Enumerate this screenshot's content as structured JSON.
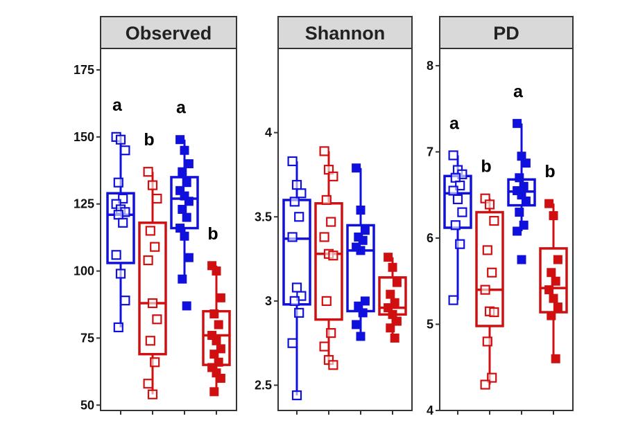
{
  "chart_data": [
    {
      "type": "boxplot",
      "title": "Observed",
      "ylim": [
        48,
        183
      ],
      "yticks": [
        50,
        75,
        100,
        125,
        150,
        175
      ],
      "groups": [
        {
          "color": "#1010dd",
          "filled": false,
          "q1": 103,
          "median": 121,
          "q3": 129,
          "whisker_low": 79,
          "whisker_high": 150,
          "points": [
            150,
            149,
            145,
            133,
            127,
            125,
            123,
            122,
            121,
            118,
            106,
            99,
            89,
            79
          ],
          "sig": "a"
        },
        {
          "color": "#d01010",
          "filled": false,
          "q1": 69,
          "median": 88,
          "q3": 118,
          "whisker_low": 54,
          "whisker_high": 137,
          "points": [
            137,
            132,
            127,
            115,
            109,
            104,
            88,
            82,
            74,
            66,
            58,
            54
          ],
          "sig": "b"
        },
        {
          "color": "#1010dd",
          "filled": true,
          "q1": 116,
          "median": 127,
          "q3": 135,
          "whisker_low": 97,
          "whisker_high": 149,
          "points": [
            149,
            145,
            140,
            137,
            133,
            130,
            128,
            126,
            123,
            120,
            116,
            113,
            105,
            97,
            87
          ],
          "sig": "a"
        },
        {
          "color": "#d01010",
          "filled": true,
          "q1": 65,
          "median": 76,
          "q3": 85,
          "whisker_low": 55,
          "whisker_high": 102,
          "points": [
            102,
            100,
            90,
            84,
            80,
            76,
            74,
            71,
            69,
            66,
            64,
            62,
            60,
            55
          ],
          "sig": "b"
        }
      ]
    },
    {
      "type": "boxplot",
      "title": "Shannon",
      "ylim": [
        2.35,
        4.5
      ],
      "yticks": [
        2.5,
        3.0,
        3.5,
        4.0
      ],
      "groups": [
        {
          "color": "#1010dd",
          "filled": false,
          "q1": 2.98,
          "median": 3.37,
          "q3": 3.6,
          "whisker_low": 2.44,
          "whisker_high": 3.83,
          "points": [
            3.83,
            3.69,
            3.64,
            3.59,
            3.5,
            3.38,
            3.08,
            3.03,
            3.0,
            2.93,
            2.75,
            2.44
          ],
          "sig": ""
        },
        {
          "color": "#d01010",
          "filled": false,
          "q1": 2.89,
          "median": 3.28,
          "q3": 3.58,
          "whisker_low": 2.62,
          "whisker_high": 3.89,
          "points": [
            3.89,
            3.78,
            3.74,
            3.6,
            3.47,
            3.38,
            3.28,
            3.27,
            3.0,
            2.81,
            2.73,
            2.65,
            2.62
          ],
          "sig": ""
        },
        {
          "color": "#1010dd",
          "filled": true,
          "q1": 2.94,
          "median": 3.3,
          "q3": 3.45,
          "whisker_low": 2.79,
          "whisker_high": 3.79,
          "points": [
            3.79,
            3.54,
            3.42,
            3.38,
            3.36,
            3.32,
            3.3,
            3.0,
            2.97,
            2.93,
            2.86,
            2.79
          ],
          "sig": ""
        },
        {
          "color": "#d01010",
          "filled": true,
          "q1": 2.92,
          "median": 2.96,
          "q3": 3.14,
          "whisker_low": 2.78,
          "whisker_high": 3.26,
          "points": [
            3.26,
            3.2,
            3.11,
            3.04,
            2.99,
            2.96,
            2.92,
            2.88,
            2.84,
            2.78
          ],
          "sig": ""
        }
      ]
    },
    {
      "type": "boxplot",
      "title": "PD",
      "ylim": [
        4.0,
        8.2
      ],
      "yticks": [
        4,
        5,
        6,
        7,
        8
      ],
      "groups": [
        {
          "color": "#1010dd",
          "filled": false,
          "q1": 6.12,
          "median": 6.52,
          "q3": 6.72,
          "whisker_low": 5.28,
          "whisker_high": 6.96,
          "points": [
            6.96,
            6.79,
            6.74,
            6.7,
            6.61,
            6.55,
            6.45,
            6.3,
            6.15,
            5.93,
            5.28
          ],
          "sig": "a"
        },
        {
          "color": "#d01010",
          "filled": false,
          "q1": 4.98,
          "median": 5.4,
          "q3": 6.3,
          "whisker_low": 4.3,
          "whisker_high": 6.46,
          "points": [
            6.46,
            6.39,
            6.2,
            5.86,
            5.6,
            5.4,
            5.15,
            5.14,
            4.8,
            4.38,
            4.3
          ],
          "sig": "b"
        },
        {
          "color": "#1010dd",
          "filled": true,
          "q1": 6.38,
          "median": 6.54,
          "q3": 6.68,
          "whisker_low": 6.08,
          "whisker_high": 7.33,
          "points": [
            7.33,
            6.95,
            6.87,
            6.7,
            6.6,
            6.55,
            6.5,
            6.43,
            6.3,
            6.15,
            6.08,
            5.75
          ],
          "sig": "a"
        },
        {
          "color": "#d01010",
          "filled": true,
          "q1": 5.14,
          "median": 5.42,
          "q3": 5.88,
          "whisker_low": 4.6,
          "whisker_high": 6.4,
          "points": [
            6.4,
            6.26,
            5.75,
            5.6,
            5.5,
            5.4,
            5.3,
            5.2,
            5.1,
            4.6
          ],
          "sig": "b"
        }
      ]
    }
  ]
}
